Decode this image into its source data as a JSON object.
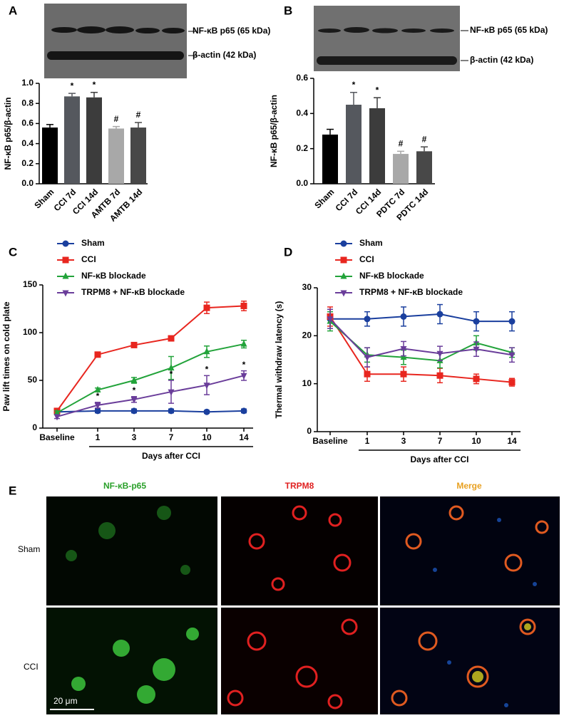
{
  "chart_data": [
    {
      "type": "bar",
      "panel": "A",
      "blot_labels": [
        "NF-κB p65 (65 kDa)",
        "β-actin (42 kDa)"
      ],
      "ylabel": "NF-κB p65/β-actin",
      "categories": [
        "Sham",
        "CCI 7d",
        "CCI 14d",
        "AMTB 7d",
        "AMTB 14d"
      ],
      "values": [
        0.56,
        0.87,
        0.86,
        0.55,
        0.56
      ],
      "errors": [
        0.03,
        0.03,
        0.05,
        0.02,
        0.05
      ],
      "value_markers": [
        null,
        "*",
        "*",
        "#",
        "#"
      ],
      "colors": [
        "#000000",
        "#55585e",
        "#3c3c3c",
        "#a8a8a8",
        "#484848"
      ],
      "ylim": [
        0,
        1.0
      ],
      "yticks": [
        {
          "value": 0,
          "label": "0.0"
        },
        {
          "value": 0.2,
          "label": "0.2"
        },
        {
          "value": 0.4,
          "label": "0.4"
        },
        {
          "value": 0.6,
          "label": "0.6"
        },
        {
          "value": 0.8,
          "label": "0.8"
        },
        {
          "value": 1.0,
          "label": "1.0"
        }
      ]
    },
    {
      "type": "bar",
      "panel": "B",
      "blot_labels": [
        "NF-κB p65 (65 kDa)",
        "β-actin (42 kDa)"
      ],
      "ylabel": "NF-κB p65/β-actin",
      "categories": [
        "Sham",
        "CCI 7d",
        "CCI 14d",
        "PDTC 7d",
        "PDTC 14d"
      ],
      "values": [
        0.28,
        0.45,
        0.43,
        0.17,
        0.185
      ],
      "errors": [
        0.03,
        0.07,
        0.06,
        0.015,
        0.025
      ],
      "value_markers": [
        null,
        "*",
        "*",
        "#",
        "#"
      ],
      "colors": [
        "#000000",
        "#55585e",
        "#3c3c3c",
        "#a8a8a8",
        "#484848"
      ],
      "ylim": [
        0,
        0.6
      ],
      "yticks": [
        {
          "value": 0,
          "label": "0.0"
        },
        {
          "value": 0.2,
          "label": "0.2"
        },
        {
          "value": 0.4,
          "label": "0.4"
        },
        {
          "value": 0.6,
          "label": "0.6"
        }
      ]
    },
    {
      "type": "line",
      "panel": "C",
      "ylabel": "Paw lift times on cold plate",
      "xlabel": "Days after CCI",
      "categories": [
        "Baseline",
        "1",
        "3",
        "7",
        "10",
        "14"
      ],
      "ylim": [
        0,
        150
      ],
      "yticks": [
        0,
        50,
        100,
        150
      ],
      "series": [
        {
          "name": "Sham",
          "color": "#1a3f9e",
          "marker": "circle",
          "values": [
            17,
            18,
            18,
            18,
            17,
            18
          ],
          "errors": [
            2,
            2,
            2,
            2,
            1.5,
            2
          ]
        },
        {
          "name": "CCI",
          "color": "#e8261f",
          "marker": "square",
          "values": [
            18,
            77,
            87,
            94,
            126,
            128
          ],
          "errors": [
            2,
            2,
            2,
            2,
            6,
            5
          ]
        },
        {
          "name": "NF-κB blockade",
          "color": "#22a33a",
          "marker": "triangle",
          "values": [
            16,
            40,
            50,
            63,
            80,
            88
          ],
          "errors": [
            2,
            2,
            3,
            12,
            6,
            4
          ]
        },
        {
          "name": "TRPM8 + NF-κB blockade",
          "color": "#6a3d9a",
          "marker": "down",
          "values": [
            12,
            24,
            30,
            38,
            45,
            55
          ],
          "errors": [
            2,
            3,
            3,
            12,
            10,
            5
          ],
          "point_labels": [
            null,
            "*",
            "*",
            "*",
            "*",
            "*"
          ]
        }
      ]
    },
    {
      "type": "line",
      "panel": "D",
      "ylabel": "Thermal withdraw latency (s)",
      "xlabel": "Days after CCI",
      "categories": [
        "Baseline",
        "1",
        "3",
        "7",
        "10",
        "14"
      ],
      "ylim": [
        0,
        30
      ],
      "yticks": [
        0,
        10,
        20,
        30
      ],
      "series": [
        {
          "name": "Sham",
          "color": "#1a3f9e",
          "marker": "circle",
          "values": [
            23.5,
            23.5,
            24,
            24.5,
            23,
            23
          ],
          "errors": [
            2,
            1.5,
            2,
            2,
            2,
            2
          ]
        },
        {
          "name": "CCI",
          "color": "#e8261f",
          "marker": "square",
          "values": [
            24,
            12,
            12,
            11.7,
            11,
            10.3
          ],
          "errors": [
            2,
            1.5,
            1.5,
            1.5,
            1,
            0.8
          ]
        },
        {
          "name": "NF-κB blockade",
          "color": "#22a33a",
          "marker": "triangle",
          "values": [
            23,
            16,
            15.5,
            14.8,
            18.5,
            16.5
          ],
          "errors": [
            2,
            1.5,
            1.5,
            1.5,
            1.5,
            1
          ]
        },
        {
          "name": "TRPM8 + NF-κB blockade",
          "color": "#6a3d9a",
          "marker": "down",
          "values": [
            23.5,
            15.5,
            17.3,
            16.3,
            17.2,
            16
          ],
          "errors": [
            2,
            2,
            1.5,
            1.5,
            1.5,
            1.5
          ]
        }
      ]
    }
  ],
  "figure_e": {
    "panel": "E",
    "columns": [
      "NF-κB-p65",
      "TRPM8",
      "Merge"
    ],
    "rows": [
      "Sham",
      "CCI"
    ],
    "scale_bar": "20 μm"
  }
}
